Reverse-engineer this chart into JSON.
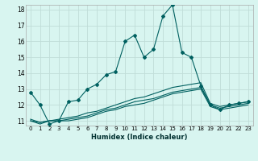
{
  "xlabel": "Humidex (Indice chaleur)",
  "bg_color": "#d8f5f0",
  "grid_color": "#c0ddd8",
  "line_color": "#006060",
  "x_min": 0,
  "x_max": 23,
  "y_min": 11,
  "y_max": 18,
  "x_ticks": [
    0,
    1,
    2,
    3,
    4,
    5,
    6,
    7,
    8,
    9,
    10,
    11,
    12,
    13,
    14,
    15,
    16,
    17,
    18,
    19,
    20,
    21,
    22,
    23
  ],
  "y_ticks": [
    11,
    12,
    13,
    14,
    15,
    16,
    17,
    18
  ],
  "series": [
    [
      12.8,
      12.0,
      10.8,
      11.0,
      12.2,
      12.3,
      13.0,
      13.3,
      13.9,
      14.1,
      16.0,
      16.4,
      15.0,
      15.5,
      17.6,
      18.3,
      15.3,
      15.0,
      13.2,
      12.0,
      11.7,
      12.0,
      12.1,
      12.2
    ],
    [
      11.0,
      10.8,
      11.0,
      11.0,
      11.0,
      11.1,
      11.2,
      11.4,
      11.6,
      11.7,
      11.9,
      12.0,
      12.1,
      12.3,
      12.5,
      12.7,
      12.8,
      12.9,
      13.0,
      11.9,
      11.7,
      11.8,
      11.9,
      12.0
    ],
    [
      11.0,
      10.9,
      11.0,
      11.0,
      11.1,
      11.2,
      11.3,
      11.5,
      11.7,
      11.8,
      12.0,
      12.2,
      12.3,
      12.4,
      12.6,
      12.8,
      12.9,
      13.0,
      13.1,
      12.0,
      11.8,
      11.9,
      12.0,
      12.1
    ],
    [
      11.1,
      10.9,
      11.0,
      11.1,
      11.2,
      11.3,
      11.5,
      11.6,
      11.8,
      12.0,
      12.2,
      12.4,
      12.5,
      12.7,
      12.9,
      13.1,
      13.2,
      13.3,
      13.4,
      12.1,
      11.9,
      12.0,
      12.1,
      12.2
    ]
  ],
  "has_markers": [
    true,
    false,
    false,
    false
  ],
  "marker_style": "D",
  "marker_size": 2.0,
  "linewidth": 0.8
}
